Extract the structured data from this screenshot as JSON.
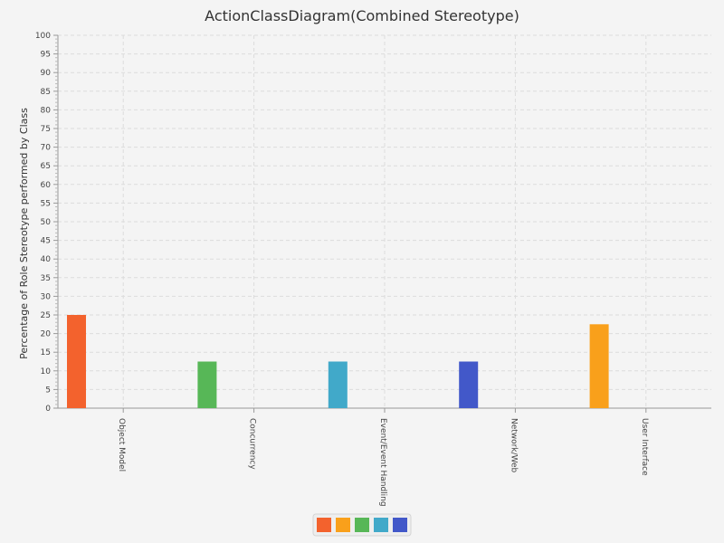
{
  "chart_data": {
    "type": "bar",
    "title": "ActionClassDiagram(Combined Stereotype)",
    "ylabel": "Percentage of Role Stereotype performed by Class",
    "xlabel": "",
    "ylim": [
      0,
      100
    ],
    "ytick_step": 5,
    "grid": true,
    "legend_placement": "bottom-center",
    "categories": [
      "Object Model",
      "Concurrency",
      "Event/Event Handling",
      "Network/Web",
      "User Interface"
    ],
    "values": [
      25,
      12.5,
      12.5,
      12.5,
      22.5
    ],
    "colors": [
      "#f3622d",
      "#57b757",
      "#41a9c9",
      "#4258c9",
      "#f9a01b"
    ],
    "legend_colors": [
      "#f3622d",
      "#f9a01b",
      "#57b757",
      "#41a9c9",
      "#4258c9"
    ]
  }
}
